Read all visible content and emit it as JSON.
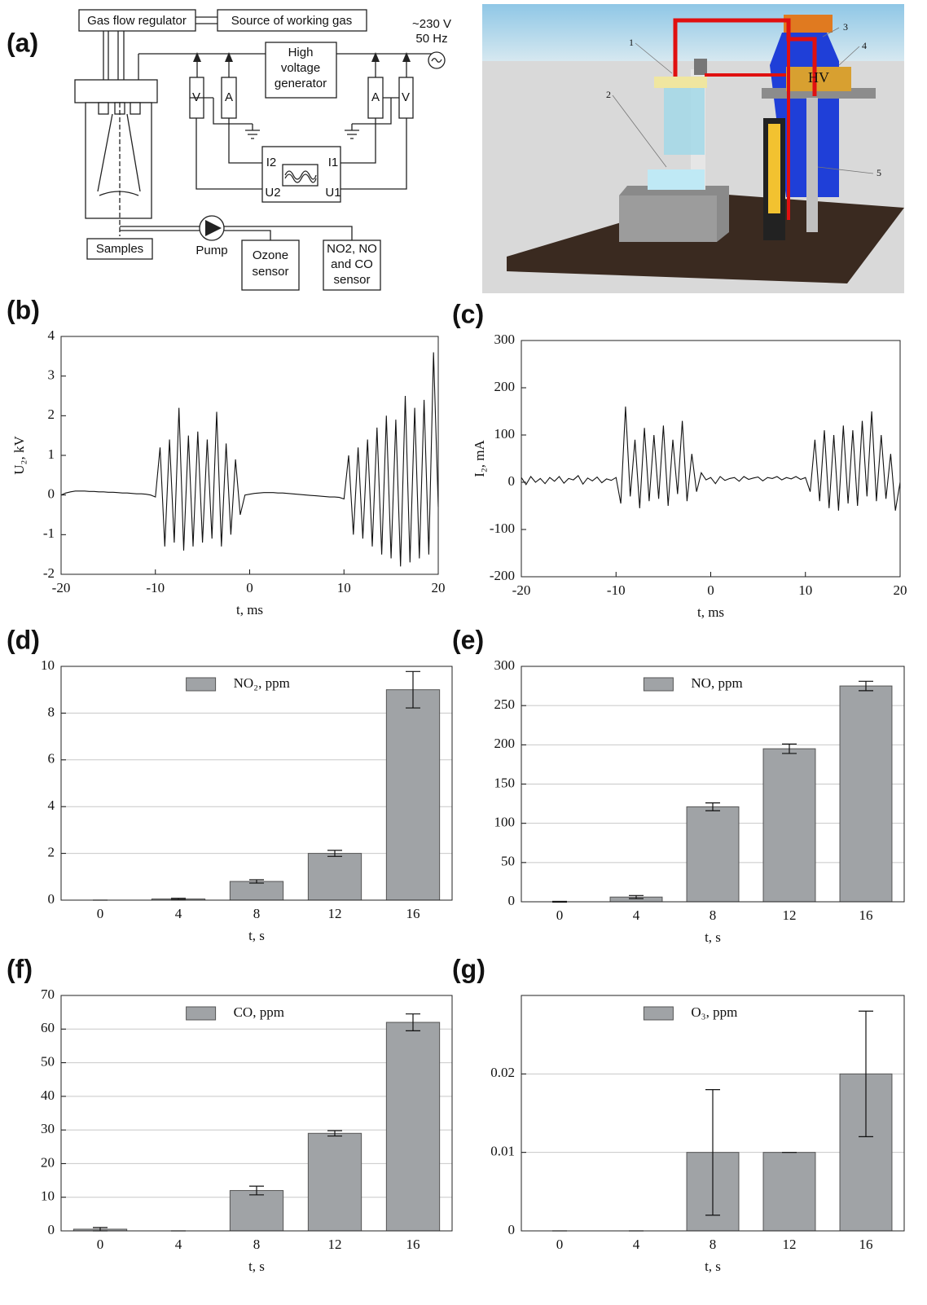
{
  "diagram": {
    "panel": "(a)",
    "gas_flow_regulator": "Gas flow regulator",
    "source": "Source of working gas",
    "mains": [
      "~230 V",
      "50 Hz"
    ],
    "hv_generator": [
      "High",
      "voltage",
      "generator"
    ],
    "meters": [
      "V",
      "A",
      "A",
      "V"
    ],
    "scope": [
      "I2",
      "I1",
      "U2",
      "U1"
    ],
    "samples": "Samples",
    "pump": "Pump",
    "ozone_sensor": [
      "Ozone",
      "sensor"
    ],
    "gas_sensor": [
      "NO2, NO",
      "and CO",
      "sensor"
    ]
  },
  "render": {
    "labels": [
      "1",
      "2",
      "3",
      "4",
      "5"
    ],
    "hv": "HV"
  },
  "chart_data": [
    {
      "type": "line",
      "panel": "(b)",
      "x_label": "t, ms",
      "y_label": "U₂, kV",
      "xlim": [
        -20,
        20
      ],
      "xticks": [
        -20,
        -10,
        0,
        10,
        20
      ],
      "ylim": [
        -2,
        4
      ],
      "yticks": [
        -2,
        -1,
        0,
        1,
        2,
        3,
        4
      ],
      "grid": false,
      "x": [
        -20,
        -19.5,
        -19,
        -18.5,
        -18,
        -17.5,
        -17,
        -16.5,
        -16,
        -15.5,
        -15,
        -14.5,
        -14,
        -13.5,
        -13,
        -12.5,
        -12,
        -11.5,
        -11,
        -10.5,
        -10,
        -9.5,
        -9,
        -8.5,
        -8,
        -7.5,
        -7,
        -6.5,
        -6,
        -5.5,
        -5,
        -4.5,
        -4,
        -3.5,
        -3,
        -2.5,
        -2,
        -1.5,
        -1,
        -0.5,
        0,
        0.5,
        1,
        1.5,
        2,
        2.5,
        3,
        3.5,
        4,
        4.5,
        5,
        5.5,
        6,
        6.5,
        7,
        7.5,
        8,
        8.5,
        9,
        9.5,
        10,
        10.5,
        11,
        11.5,
        12,
        12.5,
        13,
        13.5,
        14,
        14.5,
        15,
        15.5,
        16,
        16.5,
        17,
        17.5,
        18,
        18.5,
        19,
        19.5,
        20
      ],
      "series": [
        {
          "color": "#111111",
          "values": [
            0,
            0.05,
            0.08,
            0.1,
            0.1,
            0.1,
            0.09,
            0.09,
            0.08,
            0.08,
            0.07,
            0.07,
            0.06,
            0.05,
            0.05,
            0.04,
            0.03,
            0.03,
            0.02,
            0,
            -0.05,
            1.2,
            -1.3,
            1.4,
            -1.2,
            2.2,
            -1.4,
            1.5,
            -1.3,
            1.6,
            -1.2,
            1.4,
            -1.1,
            2.1,
            -1.3,
            1.3,
            -1,
            0.9,
            -0.5,
            0,
            0.02,
            0.04,
            0.05,
            0.06,
            0.06,
            0.06,
            0.05,
            0.05,
            0.04,
            0.03,
            0.02,
            0.01,
            0,
            -0.01,
            -0.02,
            -0.03,
            -0.04,
            -0.05,
            -0.05,
            -0.06,
            -0.1,
            1,
            -1,
            1.2,
            -1.1,
            1.4,
            -1.3,
            1.7,
            -1.5,
            2,
            -1.6,
            1.9,
            -1.8,
            2.5,
            -1.7,
            2.2,
            -1.6,
            2.4,
            -1.5,
            3.6,
            -0.3
          ]
        }
      ]
    },
    {
      "type": "line",
      "panel": "(c)",
      "x_label": "t, ms",
      "y_label": "I₂, mA",
      "xlim": [
        -20,
        20
      ],
      "xticks": [
        -20,
        -10,
        0,
        10,
        20
      ],
      "ylim": [
        -200,
        300
      ],
      "yticks": [
        -200,
        -100,
        0,
        100,
        200,
        300
      ],
      "grid": false,
      "x": [
        -20,
        -19.5,
        -19,
        -18.5,
        -18,
        -17.5,
        -17,
        -16.5,
        -16,
        -15.5,
        -15,
        -14.5,
        -14,
        -13.5,
        -13,
        -12.5,
        -12,
        -11.5,
        -11,
        -10.5,
        -10,
        -9.5,
        -9,
        -8.5,
        -8,
        -7.5,
        -7,
        -6.5,
        -6,
        -5.5,
        -5,
        -4.5,
        -4,
        -3.5,
        -3,
        -2.5,
        -2,
        -1.5,
        -1,
        -0.5,
        0,
        0.5,
        1,
        1.5,
        2,
        2.5,
        3,
        3.5,
        4,
        4.5,
        5,
        5.5,
        6,
        6.5,
        7,
        7.5,
        8,
        8.5,
        9,
        9.5,
        10,
        10.5,
        11,
        11.5,
        12,
        12.5,
        13,
        13.5,
        14,
        14.5,
        15,
        15.5,
        16,
        16.5,
        17,
        17.5,
        18,
        18.5,
        19,
        19.5,
        20
      ],
      "series": [
        {
          "color": "#111111",
          "values": [
            10,
            -5,
            12,
            0,
            8,
            -3,
            10,
            2,
            12,
            -2,
            8,
            5,
            14,
            -4,
            9,
            3,
            11,
            -1,
            7,
            4,
            10,
            -45,
            160,
            -30,
            90,
            -55,
            115,
            -40,
            100,
            -35,
            120,
            -50,
            90,
            -25,
            130,
            -40,
            60,
            -20,
            20,
            5,
            10,
            -3,
            12,
            4,
            8,
            10,
            2,
            12,
            6,
            9,
            11,
            3,
            10,
            8,
            12,
            5,
            10,
            7,
            12,
            6,
            10,
            -20,
            90,
            -40,
            110,
            -55,
            100,
            -60,
            120,
            -45,
            110,
            -50,
            130,
            -30,
            150,
            -40,
            100,
            -35,
            60,
            -60,
            0
          ]
        }
      ]
    },
    {
      "type": "bar",
      "panel": "(d)",
      "x_label": "t, s",
      "categories": [
        "0",
        "4",
        "8",
        "12",
        "16"
      ],
      "ylim": [
        0,
        10
      ],
      "yticks": [
        0,
        2,
        4,
        6,
        8,
        10
      ],
      "grid": true,
      "legend": "top",
      "series": [
        {
          "name": "NO₂, ppm",
          "color": "#a0a3a6",
          "values": [
            0,
            0.05,
            0.8,
            2,
            9
          ],
          "errors": [
            0,
            0.03,
            0.07,
            0.13,
            0.78
          ]
        }
      ]
    },
    {
      "type": "bar",
      "panel": "(e)",
      "x_label": "t, s",
      "categories": [
        "0",
        "4",
        "8",
        "12",
        "16"
      ],
      "ylim": [
        0,
        300
      ],
      "yticks": [
        0,
        50,
        100,
        150,
        200,
        250,
        300
      ],
      "grid": true,
      "legend": "top",
      "series": [
        {
          "name": "NO, ppm",
          "color": "#a0a3a6",
          "values": [
            0,
            6,
            121,
            195,
            275
          ],
          "errors": [
            0.5,
            2,
            5,
            6,
            6
          ]
        }
      ]
    },
    {
      "type": "bar",
      "panel": "(f)",
      "x_label": "t, s",
      "categories": [
        "0",
        "4",
        "8",
        "12",
        "16"
      ],
      "ylim": [
        0,
        70
      ],
      "yticks": [
        0,
        10,
        20,
        30,
        40,
        50,
        60,
        70
      ],
      "grid": true,
      "legend": "top",
      "series": [
        {
          "name": "CO, ppm",
          "color": "#a0a3a6",
          "values": [
            0.5,
            0,
            12,
            29,
            62
          ],
          "errors": [
            0.5,
            0,
            1.3,
            0.8,
            2.5
          ]
        }
      ]
    },
    {
      "type": "bar",
      "panel": "(g)",
      "x_label": "t, s",
      "categories": [
        "0",
        "4",
        "8",
        "12",
        "16"
      ],
      "ylim": [
        0,
        0.03
      ],
      "yticks": [
        0,
        0.01,
        0.02
      ],
      "grid": true,
      "legend": "top",
      "series": [
        {
          "name": "O₃, ppm",
          "color": "#a0a3a6",
          "values": [
            0,
            0,
            0.01,
            0.01,
            0.02
          ],
          "errors": [
            0,
            0,
            0.008,
            0,
            0.008
          ]
        }
      ]
    }
  ]
}
